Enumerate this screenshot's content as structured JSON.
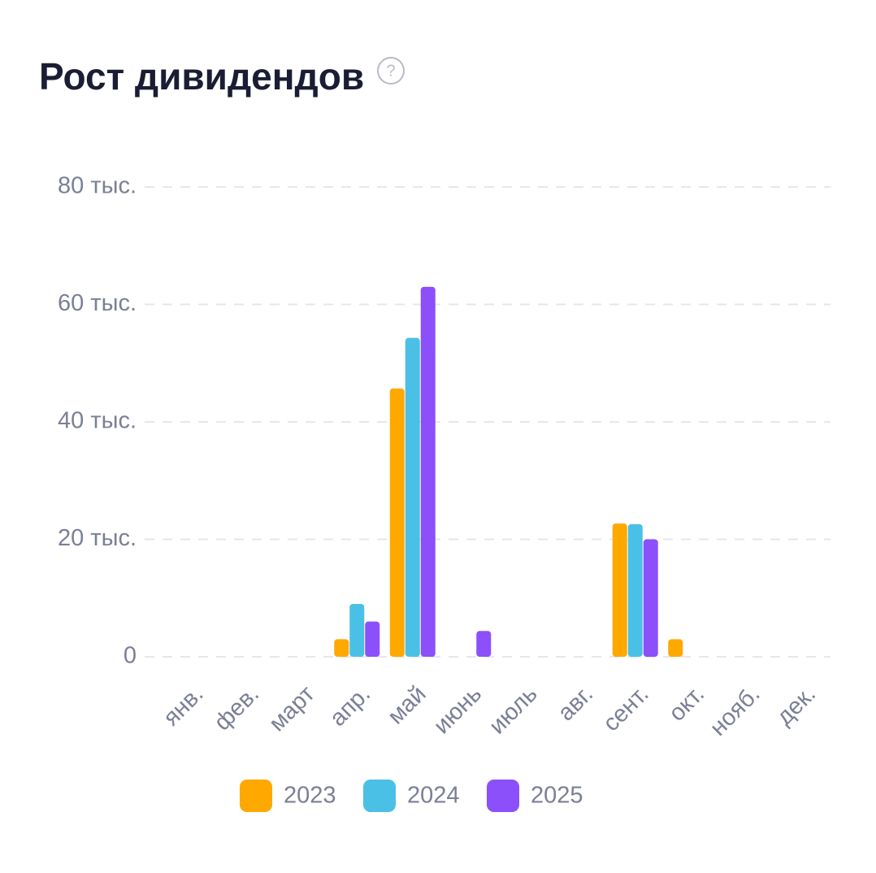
{
  "chart_data": {
    "type": "bar",
    "title": "Рост дивидендов",
    "help_icon": "?",
    "categories": [
      "янв.",
      "фев.",
      "март",
      "апр.",
      "май",
      "июнь",
      "июль",
      "авг.",
      "сент.",
      "окт.",
      "нояб.",
      "дек."
    ],
    "series": [
      {
        "name": "2023",
        "color": "#ffa800",
        "values": [
          0,
          0,
          0,
          3000,
          45700,
          0,
          0,
          0,
          22700,
          3000,
          0,
          0
        ]
      },
      {
        "name": "2024",
        "color": "#4bc0e6",
        "values": [
          0,
          0,
          0,
          9000,
          54300,
          0,
          0,
          0,
          22600,
          0,
          0,
          0
        ]
      },
      {
        "name": "2025",
        "color": "#8b50fa",
        "values": [
          0,
          0,
          0,
          6000,
          63000,
          4400,
          0,
          0,
          20000,
          0,
          0,
          0
        ]
      }
    ],
    "ylim": [
      0,
      80000
    ],
    "yticks": [
      0,
      {
        "value": 20000,
        "label": "20 тыс."
      },
      {
        "value": 40000,
        "label": "40 тыс."
      },
      {
        "value": 60000,
        "label": "60 тыс."
      },
      {
        "value": 80000,
        "label": "80 тыс."
      }
    ],
    "grid": true,
    "legend": "bottom"
  }
}
